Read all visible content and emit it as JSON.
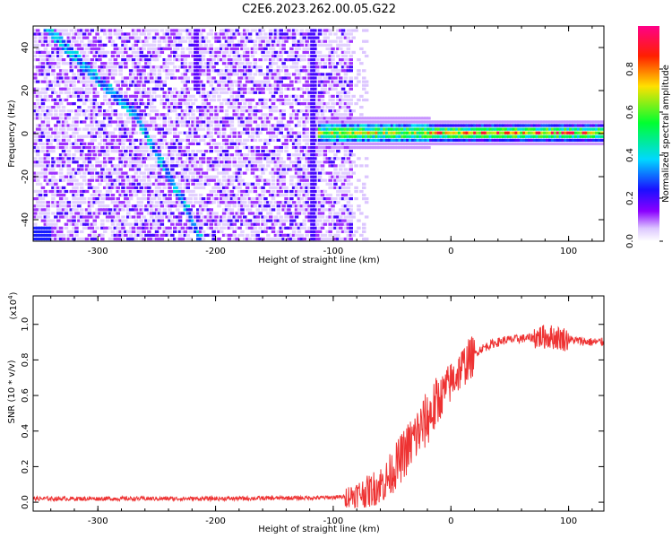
{
  "figure": {
    "title": "C2E6.2023.262.00.05.G22"
  },
  "chart_data": [
    {
      "type": "heatmap",
      "xlabel": "Height of straight line (km)",
      "ylabel": "Frequency (Hz)",
      "xlim": [
        -355,
        130
      ],
      "ylim": [
        -50,
        50
      ],
      "xticks": [
        -300,
        -200,
        -100,
        0,
        100
      ],
      "yticks": [
        -40,
        -20,
        0,
        20,
        40
      ],
      "colorbar": {
        "label": "Normalized spectral amplitude",
        "range": [
          0.0,
          1.0
        ],
        "ticks": [
          "0.0",
          "0.2",
          "0.4",
          "0.6",
          "0.8"
        ],
        "colormap": [
          "#ffffff",
          "#e6d6ff",
          "#8a00ff",
          "#1a00ff",
          "#00d8ff",
          "#00ff40",
          "#ffe000",
          "#ff2000",
          "#ff0080"
        ]
      },
      "features": {
        "noise_region_x": [
          -355,
          -85
        ],
        "diagonal_track": [
          [
            -345,
            50
          ],
          [
            -300,
            25
          ],
          [
            -270,
            10
          ],
          [
            -245,
            -15
          ],
          [
            -228,
            -32
          ],
          [
            -213,
            -50
          ]
        ],
        "carrier_line_x": [
          -115,
          130
        ],
        "carrier_line_frequency": 1
      },
      "grid": false
    },
    {
      "type": "line",
      "xlabel": "Height of straight line (km)",
      "ylabel": "SNR (10 * v/v)",
      "y_multiplier": "(x10^4)",
      "xlim": [
        -355,
        130
      ],
      "ylim": [
        -0.05,
        1.16
      ],
      "xticks": [
        -300,
        -200,
        -100,
        0,
        100
      ],
      "yticks": [
        0.0,
        0.2,
        0.4,
        0.6,
        0.8,
        1.0
      ],
      "color": "#ee3333",
      "series": [
        {
          "x": [
            -355,
            -300,
            -200,
            -110,
            -90,
            -70,
            -55,
            -45,
            -35,
            -25,
            -15,
            -5,
            5,
            15,
            25,
            35,
            45,
            60,
            75,
            85,
            95,
            105,
            120,
            130
          ],
          "y": [
            0.02,
            0.02,
            0.02,
            0.025,
            0.03,
            0.06,
            0.12,
            0.22,
            0.32,
            0.42,
            0.52,
            0.63,
            0.72,
            0.8,
            0.86,
            0.89,
            0.91,
            0.92,
            0.93,
            0.93,
            0.92,
            0.91,
            0.9,
            0.9
          ]
        }
      ],
      "grid": false
    }
  ]
}
